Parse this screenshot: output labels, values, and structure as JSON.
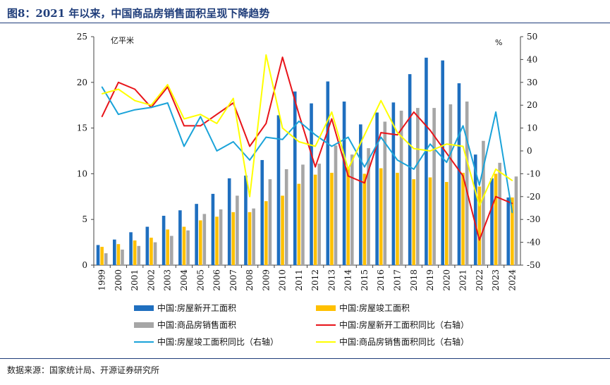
{
  "title": "图8：2021 年以来，中国商品房销售面积呈现下降趋势",
  "source": "数据来源：国家统计局、开源证券研究所",
  "chart_data": {
    "type": "bar",
    "left_unit": "亿平米",
    "right_unit": "%",
    "ylim_left": [
      0,
      25
    ],
    "ylim_right": [
      -50,
      50
    ],
    "left_ticks": [
      0,
      5,
      10,
      15,
      20,
      25
    ],
    "right_ticks": [
      -50,
      -40,
      -30,
      -20,
      -10,
      0,
      10,
      20,
      30,
      40,
      50
    ],
    "categories": [
      "1999",
      "2000",
      "2001",
      "2002",
      "2003",
      "2004",
      "2005",
      "2006",
      "2007",
      "2008",
      "2009",
      "2010",
      "2011",
      "2012",
      "2013",
      "2014",
      "2015",
      "2016",
      "2017",
      "2018",
      "2019",
      "2020",
      "2021",
      "2022",
      "2023",
      "2024"
    ],
    "bar_series": [
      {
        "name": "中国:房屋新开工面积",
        "color": "#1f6fbf",
        "values": [
          2.2,
          2.8,
          3.6,
          4.2,
          5.4,
          6.0,
          6.7,
          7.8,
          9.5,
          9.8,
          11.5,
          16.4,
          19.0,
          17.7,
          20.1,
          17.9,
          15.4,
          16.7,
          17.8,
          20.9,
          22.7,
          22.4,
          19.9,
          12.1,
          9.5,
          7.4
        ]
      },
      {
        "name": "中国:房屋竣工面积",
        "color": "#ffc000",
        "values": [
          2.0,
          2.3,
          2.7,
          3.0,
          3.9,
          4.2,
          4.9,
          5.3,
          5.8,
          5.8,
          7.0,
          7.6,
          8.9,
          9.9,
          10.1,
          10.7,
          10.0,
          10.6,
          10.1,
          9.4,
          9.6,
          9.1,
          10.1,
          8.6,
          10.0,
          7.4
        ]
      },
      {
        "name": "中国:商品房销售面积",
        "color": "#a6a6a6",
        "values": [
          1.3,
          1.7,
          2.1,
          2.5,
          3.2,
          3.8,
          5.6,
          6.1,
          7.6,
          6.2,
          9.4,
          10.5,
          11.0,
          11.1,
          13.1,
          12.1,
          12.8,
          15.7,
          16.9,
          17.2,
          17.2,
          17.6,
          17.9,
          13.6,
          11.2,
          9.7
        ]
      }
    ],
    "line_series": [
      {
        "name": "中国:房屋新开工面积同比（右轴）",
        "color": "#e8141a",
        "values": [
          15,
          30,
          27,
          19,
          28,
          11,
          11,
          16,
          21,
          2,
          12,
          41,
          16,
          -7,
          14,
          -11,
          -14,
          8,
          7,
          17,
          9,
          -1,
          -11,
          -39,
          -20,
          -23
        ]
      },
      {
        "name": "中国:房屋竣工面积同比（右轴）",
        "color": "#1aa3d9",
        "values": [
          28,
          16,
          18,
          19,
          21,
          2,
          15,
          0,
          4,
          -4,
          6,
          5,
          13,
          7,
          2,
          6,
          -7,
          6,
          -4,
          -8,
          3,
          -5,
          11,
          -15,
          17,
          -27
        ]
      },
      {
        "name": "中国:商品房销售面积同比（右轴）",
        "color": "#ffff00",
        "values": [
          25,
          27,
          22,
          20,
          29,
          14,
          16,
          12,
          23,
          -20,
          42,
          10,
          4,
          2,
          17,
          -8,
          7,
          22,
          8,
          1,
          0,
          3,
          2,
          -24,
          -8,
          -13
        ]
      }
    ]
  }
}
